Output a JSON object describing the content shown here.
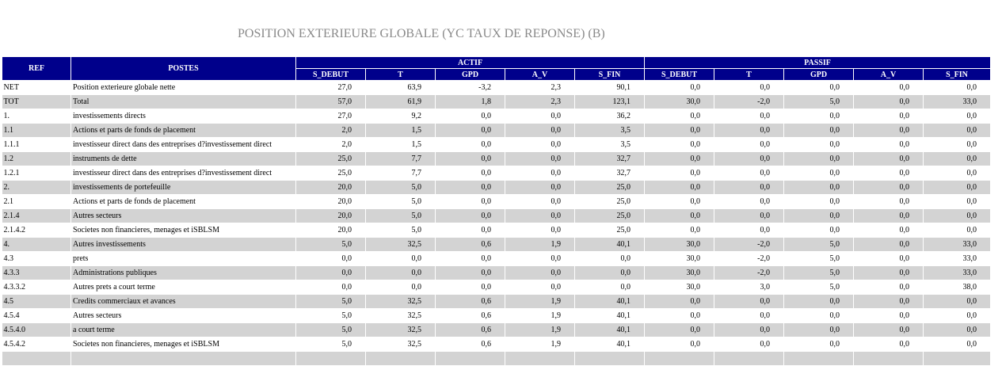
{
  "title": "POSITION EXTERIEURE GLOBALE (YC TAUX DE REPONSE) (B)",
  "headers": {
    "ref": "REF",
    "postes": "POSTES",
    "actif": "ACTIF",
    "passif": "PASSIF",
    "sub": [
      "S_DEBUT",
      "T",
      "GPD",
      "A_V",
      "S_FIN"
    ]
  },
  "colors": {
    "header_bg": "#00008b",
    "row_alt": "#d3d3d3",
    "title": "#8a8a8a"
  },
  "rows": [
    {
      "ref": "NET",
      "poste": "Position exterieure globale nette",
      "actif": [
        "27,0",
        "63,9",
        "-3,2",
        "2,3",
        "90,1"
      ],
      "passif": [
        "0,0",
        "0,0",
        "0,0",
        "0,0",
        "0,0"
      ]
    },
    {
      "ref": "TOT",
      "poste": "Total",
      "actif": [
        "57,0",
        "61,9",
        "1,8",
        "2,3",
        "123,1"
      ],
      "passif": [
        "30,0",
        "-2,0",
        "5,0",
        "0,0",
        "33,0"
      ]
    },
    {
      "ref": "1.",
      "poste": "investissements directs",
      "actif": [
        "27,0",
        "9,2",
        "0,0",
        "0,0",
        "36,2"
      ],
      "passif": [
        "0,0",
        "0,0",
        "0,0",
        "0,0",
        "0,0"
      ]
    },
    {
      "ref": "1.1",
      "poste": "Actions et parts de fonds de placement",
      "actif": [
        "2,0",
        "1,5",
        "0,0",
        "0,0",
        "3,5"
      ],
      "passif": [
        "0,0",
        "0,0",
        "0,0",
        "0,0",
        "0,0"
      ]
    },
    {
      "ref": "1.1.1",
      "poste": "investisseur direct dans des entreprises d?investissement direct",
      "actif": [
        "2,0",
        "1,5",
        "0,0",
        "0,0",
        "3,5"
      ],
      "passif": [
        "0,0",
        "0,0",
        "0,0",
        "0,0",
        "0,0"
      ]
    },
    {
      "ref": "1.2",
      "poste": "instruments de dette",
      "actif": [
        "25,0",
        "7,7",
        "0,0",
        "0,0",
        "32,7"
      ],
      "passif": [
        "0,0",
        "0,0",
        "0,0",
        "0,0",
        "0,0"
      ]
    },
    {
      "ref": "1.2.1",
      "poste": "investisseur direct dans des entreprises d?investissement direct",
      "actif": [
        "25,0",
        "7,7",
        "0,0",
        "0,0",
        "32,7"
      ],
      "passif": [
        "0,0",
        "0,0",
        "0,0",
        "0,0",
        "0,0"
      ]
    },
    {
      "ref": "2.",
      "poste": "investissements de portefeuille",
      "actif": [
        "20,0",
        "5,0",
        "0,0",
        "0,0",
        "25,0"
      ],
      "passif": [
        "0,0",
        "0,0",
        "0,0",
        "0,0",
        "0,0"
      ]
    },
    {
      "ref": "2.1",
      "poste": "Actions et parts de fonds de placement",
      "actif": [
        "20,0",
        "5,0",
        "0,0",
        "0,0",
        "25,0"
      ],
      "passif": [
        "0,0",
        "0,0",
        "0,0",
        "0,0",
        "0,0"
      ]
    },
    {
      "ref": "2.1.4",
      "poste": "Autres secteurs",
      "actif": [
        "20,0",
        "5,0",
        "0,0",
        "0,0",
        "25,0"
      ],
      "passif": [
        "0,0",
        "0,0",
        "0,0",
        "0,0",
        "0,0"
      ]
    },
    {
      "ref": "2.1.4.2",
      "poste": "Societes non financieres, menages et iSBLSM",
      "actif": [
        "20,0",
        "5,0",
        "0,0",
        "0,0",
        "25,0"
      ],
      "passif": [
        "0,0",
        "0,0",
        "0,0",
        "0,0",
        "0,0"
      ]
    },
    {
      "ref": "4.",
      "poste": "Autres investissements",
      "actif": [
        "5,0",
        "32,5",
        "0,6",
        "1,9",
        "40,1"
      ],
      "passif": [
        "30,0",
        "-2,0",
        "5,0",
        "0,0",
        "33,0"
      ]
    },
    {
      "ref": "4.3",
      "poste": "prets",
      "actif": [
        "0,0",
        "0,0",
        "0,0",
        "0,0",
        "0,0"
      ],
      "passif": [
        "30,0",
        "-2,0",
        "5,0",
        "0,0",
        "33,0"
      ]
    },
    {
      "ref": "4.3.3",
      "poste": "Administrations publiques",
      "actif": [
        "0,0",
        "0,0",
        "0,0",
        "0,0",
        "0,0"
      ],
      "passif": [
        "30,0",
        "-2,0",
        "5,0",
        "0,0",
        "33,0"
      ]
    },
    {
      "ref": "4.3.3.2",
      "poste": "Autres prets a court terme",
      "actif": [
        "0,0",
        "0,0",
        "0,0",
        "0,0",
        "0,0"
      ],
      "passif": [
        "30,0",
        "3,0",
        "5,0",
        "0,0",
        "38,0"
      ]
    },
    {
      "ref": "4.5",
      "poste": "Credits commerciaux et avances",
      "actif": [
        "5,0",
        "32,5",
        "0,6",
        "1,9",
        "40,1"
      ],
      "passif": [
        "0,0",
        "0,0",
        "0,0",
        "0,0",
        "0,0"
      ]
    },
    {
      "ref": "4.5.4",
      "poste": "Autres secteurs",
      "actif": [
        "5,0",
        "32,5",
        "0,6",
        "1,9",
        "40,1"
      ],
      "passif": [
        "0,0",
        "0,0",
        "0,0",
        "0,0",
        "0,0"
      ]
    },
    {
      "ref": "4.5.4.0",
      "poste": "a court terme",
      "actif": [
        "5,0",
        "32,5",
        "0,6",
        "1,9",
        "40,1"
      ],
      "passif": [
        "0,0",
        "0,0",
        "0,0",
        "0,0",
        "0,0"
      ]
    },
    {
      "ref": "4.5.4.2",
      "poste": "Societes non financieres, menages et iSBLSM",
      "actif": [
        "5,0",
        "32,5",
        "0,6",
        "1,9",
        "40,1"
      ],
      "passif": [
        "0,0",
        "0,0",
        "0,0",
        "0,0",
        "0,0"
      ]
    },
    {
      "ref": "",
      "poste": "",
      "actif": [
        "",
        "",
        "",
        "",
        ""
      ],
      "passif": [
        "",
        "",
        "",
        "",
        ""
      ]
    }
  ]
}
